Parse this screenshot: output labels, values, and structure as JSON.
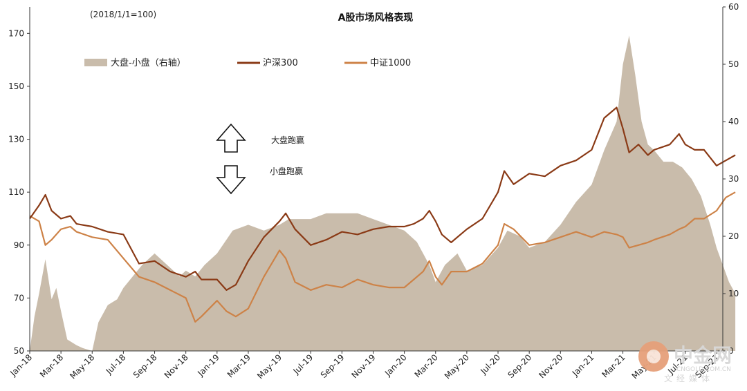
{
  "chart_data": {
    "type": "line",
    "title": "A股市场风格表现",
    "subtitle": "(2018/1/1=100)",
    "legend_position": "top-left",
    "grid": false,
    "x_labels": [
      "Jan-18",
      "Mar-18",
      "May-18",
      "Jul-18",
      "Sep-18",
      "Nov-18",
      "Jan-19",
      "Mar-19",
      "May-19",
      "Jul-19",
      "Sep-19",
      "Nov-19",
      "Jan-20",
      "Mar-20",
      "May-20",
      "Jul-20",
      "Sep-20",
      "Nov-20",
      "Jan-21",
      "Mar-21",
      "May-21",
      "Jul-21",
      "Sep-21"
    ],
    "y_left": {
      "lim": [
        50,
        180
      ],
      "ticks": [
        50,
        70,
        90,
        110,
        130,
        150,
        170
      ]
    },
    "y_right": {
      "lim": [
        0,
        60
      ],
      "ticks": [
        0,
        10,
        20,
        30,
        40,
        50,
        60
      ]
    },
    "series": [
      {
        "name": "大盘-小盘（右轴）",
        "type": "area",
        "axis": "right",
        "color": "#c9bcab",
        "x": [
          0,
          0.15,
          0.3,
          0.5,
          0.7,
          0.85,
          1.0,
          1.2,
          1.5,
          1.7,
          2.0,
          2.2,
          2.5,
          2.8,
          3.0,
          3.3,
          3.6,
          4.0,
          4.4,
          4.8,
          5.0,
          5.3,
          5.6,
          6.0,
          6.5,
          7.0,
          7.5,
          8.0,
          8.3,
          8.7,
          9.0,
          9.5,
          10.0,
          10.5,
          11.0,
          11.5,
          12.0,
          12.4,
          12.8,
          13.0,
          13.3,
          13.7,
          14.0,
          14.5,
          15.0,
          15.3,
          15.7,
          16.0,
          16.5,
          17.0,
          17.5,
          18.0,
          18.4,
          18.8,
          19.0,
          19.2,
          19.4,
          19.6,
          19.8,
          20.0,
          20.3,
          20.6,
          20.9,
          21.2,
          21.5,
          21.8,
          22.0,
          22.2,
          22.4,
          22.6
        ],
        "values": [
          0,
          6,
          10,
          16,
          9,
          11,
          7,
          2,
          1,
          0.5,
          0,
          5,
          8,
          9,
          11,
          13,
          15,
          17,
          15,
          13,
          14,
          13,
          15,
          17,
          21,
          22,
          21,
          22,
          23,
          23,
          23,
          24,
          24,
          24,
          23,
          22,
          21,
          19,
          15,
          12,
          15,
          17,
          14,
          15,
          18,
          21,
          20,
          18,
          19,
          22,
          26,
          29,
          35,
          40,
          50,
          55,
          48,
          40,
          36,
          35,
          33,
          33,
          32,
          30,
          27,
          22,
          18,
          15,
          12,
          10
        ]
      },
      {
        "name": "沪深300",
        "type": "line",
        "axis": "left",
        "color": "#8a3a16",
        "x": [
          0,
          0.3,
          0.5,
          0.7,
          1.0,
          1.3,
          1.5,
          2.0,
          2.5,
          3.0,
          3.5,
          4.0,
          4.5,
          5.0,
          5.3,
          5.5,
          6.0,
          6.3,
          6.6,
          7.0,
          7.5,
          8.0,
          8.2,
          8.5,
          9.0,
          9.5,
          10.0,
          10.5,
          11.0,
          11.5,
          12.0,
          12.3,
          12.6,
          12.8,
          13.0,
          13.2,
          13.5,
          14.0,
          14.5,
          15.0,
          15.2,
          15.5,
          16.0,
          16.5,
          17.0,
          17.5,
          18.0,
          18.4,
          18.8,
          19.0,
          19.2,
          19.5,
          19.8,
          20.0,
          20.5,
          20.8,
          21.0,
          21.3,
          21.6,
          22.0,
          22.3,
          22.6
        ],
        "values": [
          100,
          105,
          109,
          103,
          100,
          101,
          98,
          97,
          95,
          94,
          83,
          84,
          80,
          78,
          80,
          77,
          77,
          73,
          75,
          84,
          93,
          99,
          102,
          96,
          90,
          92,
          95,
          94,
          96,
          97,
          97,
          98,
          100,
          103,
          99,
          94,
          91,
          96,
          100,
          110,
          118,
          113,
          117,
          116,
          120,
          122,
          126,
          138,
          142,
          134,
          125,
          128,
          124,
          126,
          128,
          132,
          128,
          126,
          126,
          120,
          122,
          124
        ]
      },
      {
        "name": "中证1000",
        "type": "line",
        "axis": "left",
        "color": "#cd8247",
        "x": [
          0,
          0.3,
          0.5,
          0.7,
          1.0,
          1.3,
          1.5,
          2.0,
          2.5,
          3.0,
          3.5,
          4.0,
          4.5,
          5.0,
          5.3,
          5.5,
          6.0,
          6.3,
          6.6,
          7.0,
          7.5,
          8.0,
          8.2,
          8.5,
          9.0,
          9.5,
          10.0,
          10.5,
          11.0,
          11.5,
          12.0,
          12.3,
          12.6,
          12.8,
          13.0,
          13.2,
          13.5,
          14.0,
          14.5,
          15.0,
          15.2,
          15.5,
          16.0,
          16.5,
          17.0,
          17.5,
          18.0,
          18.4,
          18.8,
          19.0,
          19.2,
          19.5,
          19.8,
          20.0,
          20.5,
          20.8,
          21.0,
          21.3,
          21.6,
          22.0,
          22.3,
          22.6
        ],
        "values": [
          101,
          99,
          90,
          92,
          96,
          97,
          95,
          93,
          92,
          85,
          78,
          76,
          73,
          70,
          61,
          63,
          69,
          65,
          63,
          66,
          78,
          88,
          85,
          76,
          73,
          75,
          74,
          77,
          75,
          74,
          74,
          77,
          80,
          84,
          78,
          75,
          80,
          80,
          83,
          90,
          98,
          96,
          90,
          91,
          93,
          95,
          93,
          95,
          94,
          93,
          89,
          90,
          91,
          92,
          94,
          96,
          97,
          100,
          100,
          103,
          108,
          110
        ]
      }
    ]
  },
  "annotations": {
    "up": "大盘跑赢",
    "down": "小盘跑赢"
  },
  "watermark": {
    "cn": "中金网",
    "en": "CNGOLD.COM.CN",
    "sub": "文经媒体"
  }
}
